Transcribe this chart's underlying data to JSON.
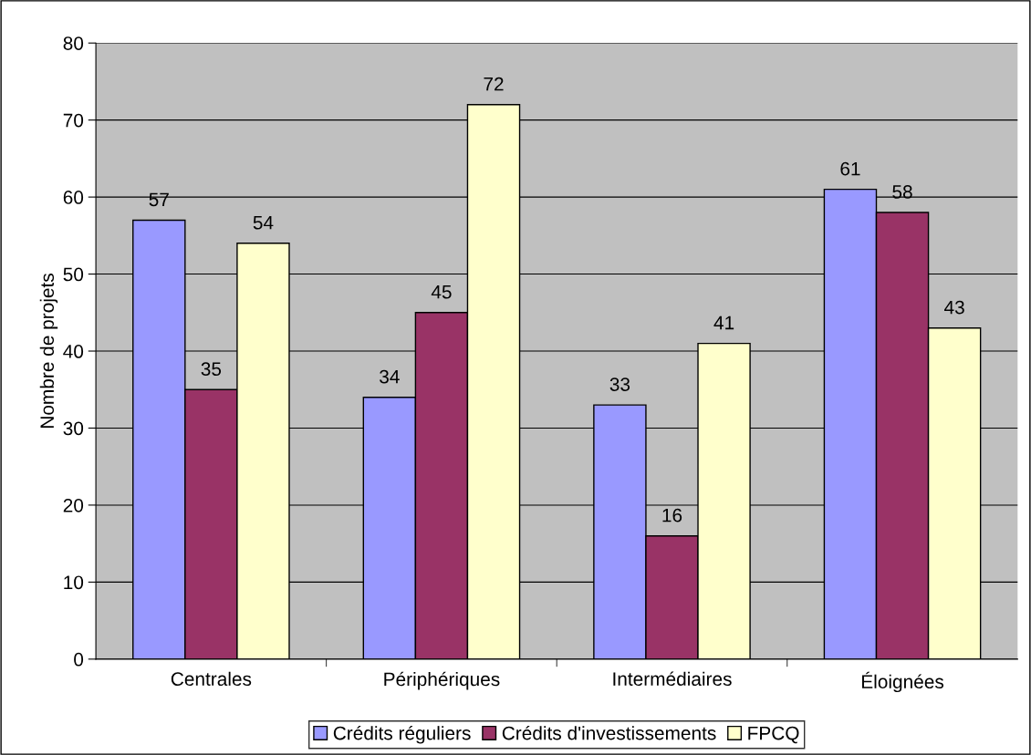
{
  "chart_data": {
    "type": "bar",
    "ylabel": "Nombre de projets",
    "categories": [
      "Centrales",
      "Périphériques",
      "Intermédiaires",
      "Éloignées"
    ],
    "series": [
      {
        "name": "Crédits réguliers",
        "color": "#9999ff",
        "values": [
          57,
          34,
          33,
          61
        ]
      },
      {
        "name": "Crédits d'investissements",
        "color": "#993366",
        "values": [
          35,
          45,
          16,
          58
        ]
      },
      {
        "name": "FPCQ",
        "color": "#ffffcc",
        "values": [
          54,
          72,
          41,
          43
        ]
      }
    ],
    "ylim": [
      0,
      80
    ],
    "yticks": [
      0,
      10,
      20,
      30,
      40,
      50,
      60,
      70,
      80
    ],
    "grid": "y",
    "legend": "bottom",
    "data_labels": true
  }
}
